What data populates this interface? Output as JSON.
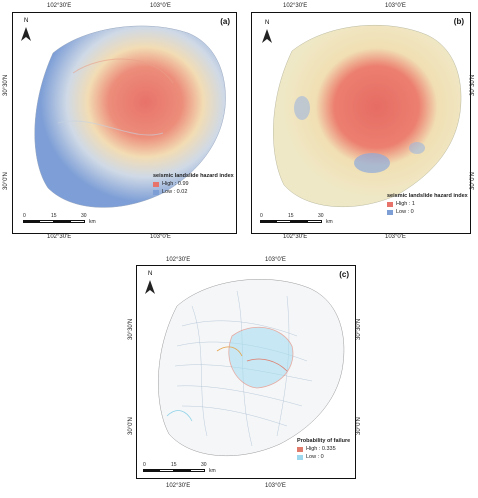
{
  "panels": {
    "a": {
      "label": "(a)",
      "top_ticks": [
        "102°30'E",
        "103°0'E"
      ],
      "bottom_ticks": [
        "102°30'E",
        "103°0'E"
      ],
      "left_ticks": [
        "30°30'N",
        "30°0'N"
      ],
      "north": "N",
      "legend": {
        "title": "seismic landslide hazard index",
        "high": "High : 0.99",
        "low": "Low : 0.02"
      },
      "scale": {
        "t0": "0",
        "t1": "15",
        "t2": "30",
        "unit": "km"
      }
    },
    "b": {
      "label": "(b)",
      "top_ticks": [
        "102°30'E",
        "103°0'E"
      ],
      "bottom_ticks": [
        "102°30'E",
        "103°0'E"
      ],
      "right_ticks": [
        "30°30'N",
        "30°0'N"
      ],
      "north": "N",
      "legend": {
        "title": "seismic landslide hazard index",
        "high": "High : 1",
        "low": "Low : 0"
      },
      "scale": {
        "t0": "0",
        "t1": "15",
        "t2": "30",
        "unit": "km"
      }
    },
    "c": {
      "label": "(c)",
      "top_ticks": [
        "102°30'E",
        "103°0'E"
      ],
      "bottom_ticks": [
        "102°30'E",
        "103°0'E"
      ],
      "left_ticks": [
        "30°30'N",
        "30°0'N"
      ],
      "right_ticks": [
        "30°30'N",
        "30°0'N"
      ],
      "north": "N",
      "legend": {
        "title": "Probability of failure",
        "high": "High : 0.335",
        "low": "Low : 0"
      },
      "scale": {
        "t0": "0",
        "t1": "15",
        "t2": "30",
        "unit": "km"
      }
    }
  },
  "colors": {
    "high": "#e8736a",
    "mid": "#f3e7b8",
    "low": "#7e9fd6",
    "c_low": "#9ed8ee",
    "c_high": "#e07a6a"
  }
}
